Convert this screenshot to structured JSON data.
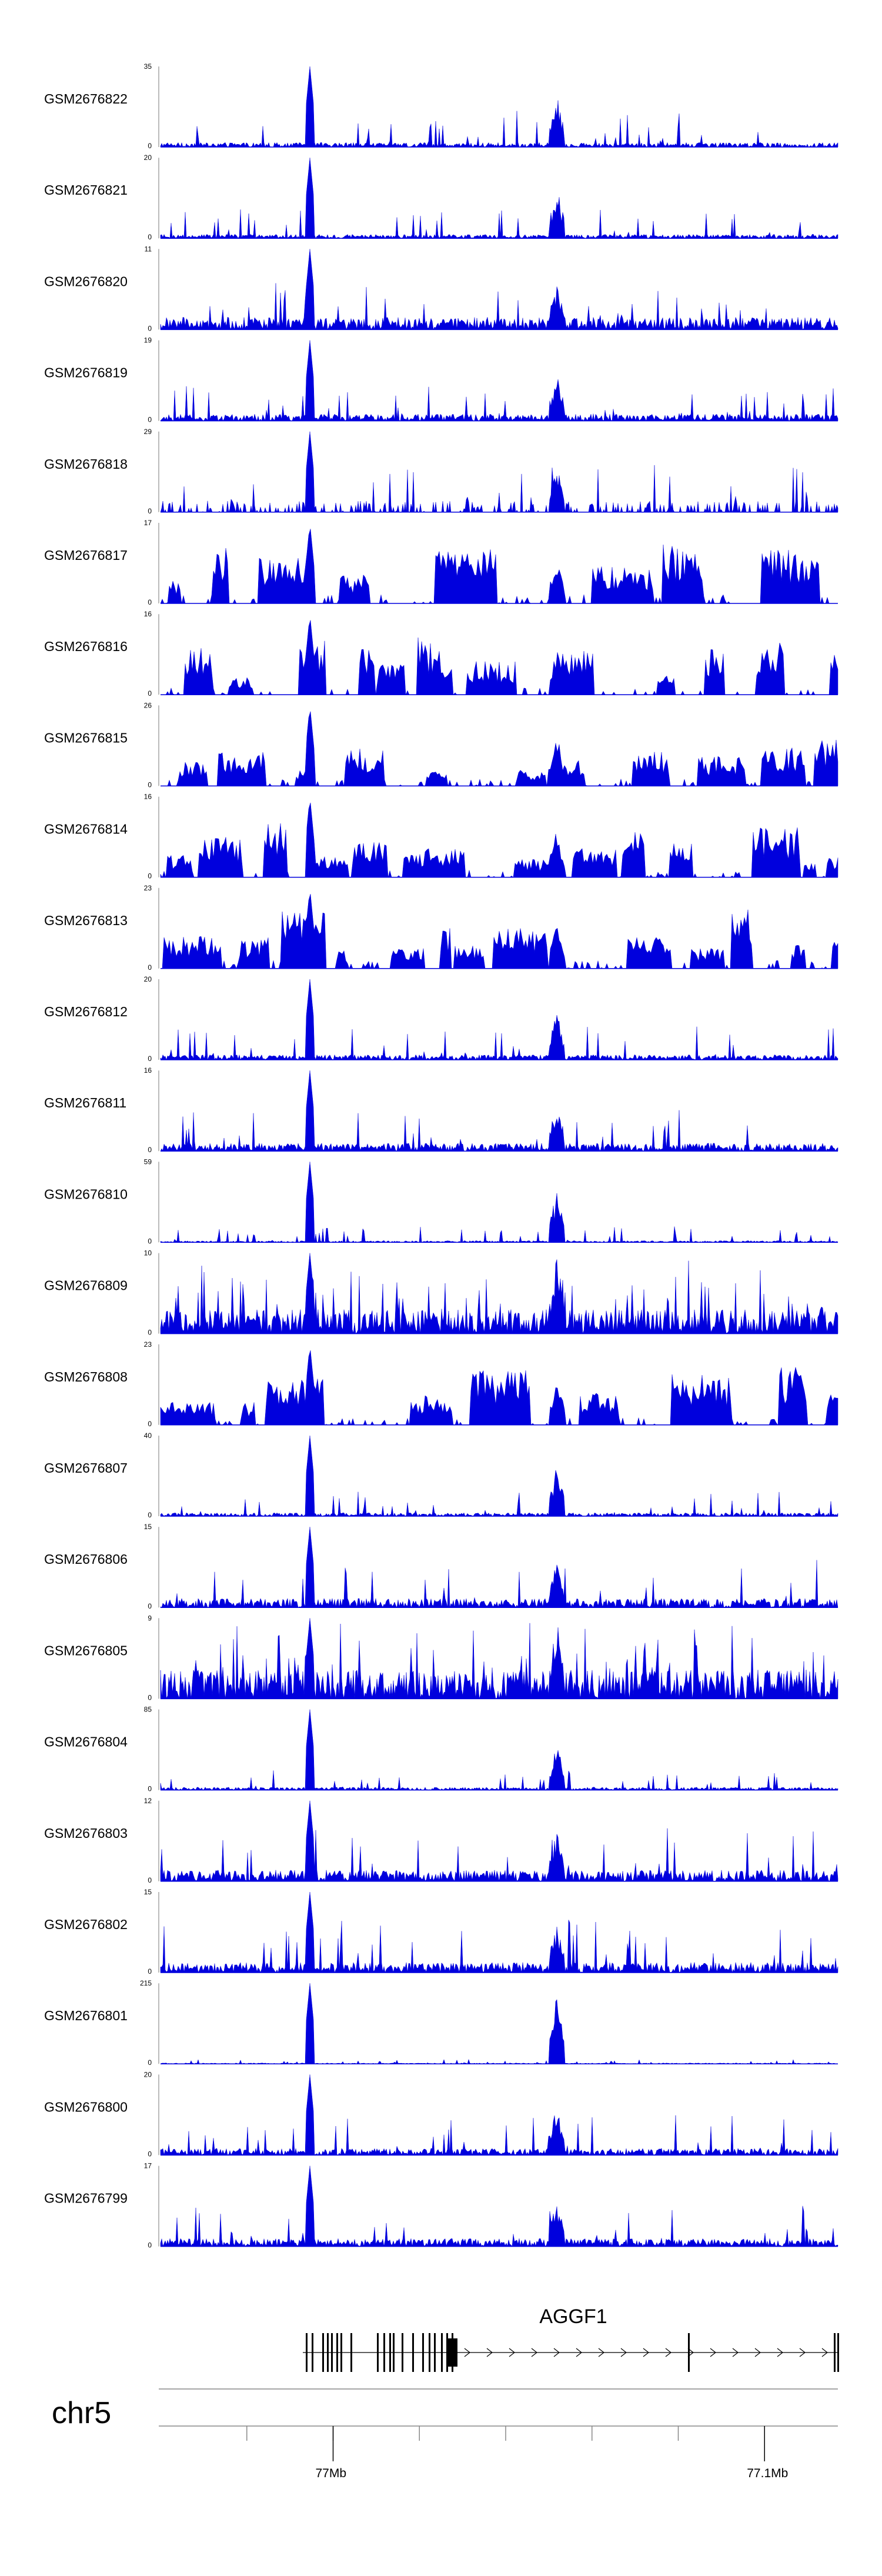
{
  "chart_data": {
    "type": "area",
    "xlabel": "",
    "chromosome": "chr5",
    "genomic_axis": {
      "ticks": [
        {
          "position_bp": 77000000,
          "label": "77Mb"
        },
        {
          "position_bp": 77100000,
          "label": "77.1Mb"
        }
      ]
    },
    "gene": {
      "name": "AGGF1",
      "strand": "+"
    },
    "series_color": "#0000dd",
    "tracks": [
      {
        "name": "GSM2676822",
        "ymax": "35",
        "ymin": "0"
      },
      {
        "name": "GSM2676821",
        "ymax": "20",
        "ymin": "0"
      },
      {
        "name": "GSM2676820",
        "ymax": "11",
        "ymin": "0"
      },
      {
        "name": "GSM2676819",
        "ymax": "19",
        "ymin": "0"
      },
      {
        "name": "GSM2676818",
        "ymax": "29",
        "ymin": "0"
      },
      {
        "name": "GSM2676817",
        "ymax": "17",
        "ymin": "0"
      },
      {
        "name": "GSM2676816",
        "ymax": "16",
        "ymin": "0"
      },
      {
        "name": "GSM2676815",
        "ymax": "26",
        "ymin": "0"
      },
      {
        "name": "GSM2676814",
        "ymax": "16",
        "ymin": "0"
      },
      {
        "name": "GSM2676813",
        "ymax": "23",
        "ymin": "0"
      },
      {
        "name": "GSM2676812",
        "ymax": "20",
        "ymin": "0"
      },
      {
        "name": "GSM2676811",
        "ymax": "16",
        "ymin": "0"
      },
      {
        "name": "GSM2676810",
        "ymax": "59",
        "ymin": "0"
      },
      {
        "name": "GSM2676809",
        "ymax": "10",
        "ymin": "0"
      },
      {
        "name": "GSM2676808",
        "ymax": "23",
        "ymin": "0"
      },
      {
        "name": "GSM2676807",
        "ymax": "40",
        "ymin": "0"
      },
      {
        "name": "GSM2676806",
        "ymax": "15",
        "ymin": "0"
      },
      {
        "name": "GSM2676805",
        "ymax": "9",
        "ymin": "0"
      },
      {
        "name": "GSM2676804",
        "ymax": "85",
        "ymin": "0"
      },
      {
        "name": "GSM2676803",
        "ymax": "12",
        "ymin": "0"
      },
      {
        "name": "GSM2676802",
        "ymax": "15",
        "ymin": "0"
      },
      {
        "name": "GSM2676801",
        "ymax": "215",
        "ymin": "0"
      },
      {
        "name": "GSM2676800",
        "ymax": "20",
        "ymin": "0"
      },
      {
        "name": "GSM2676799",
        "ymax": "17",
        "ymin": "0"
      }
    ]
  }
}
